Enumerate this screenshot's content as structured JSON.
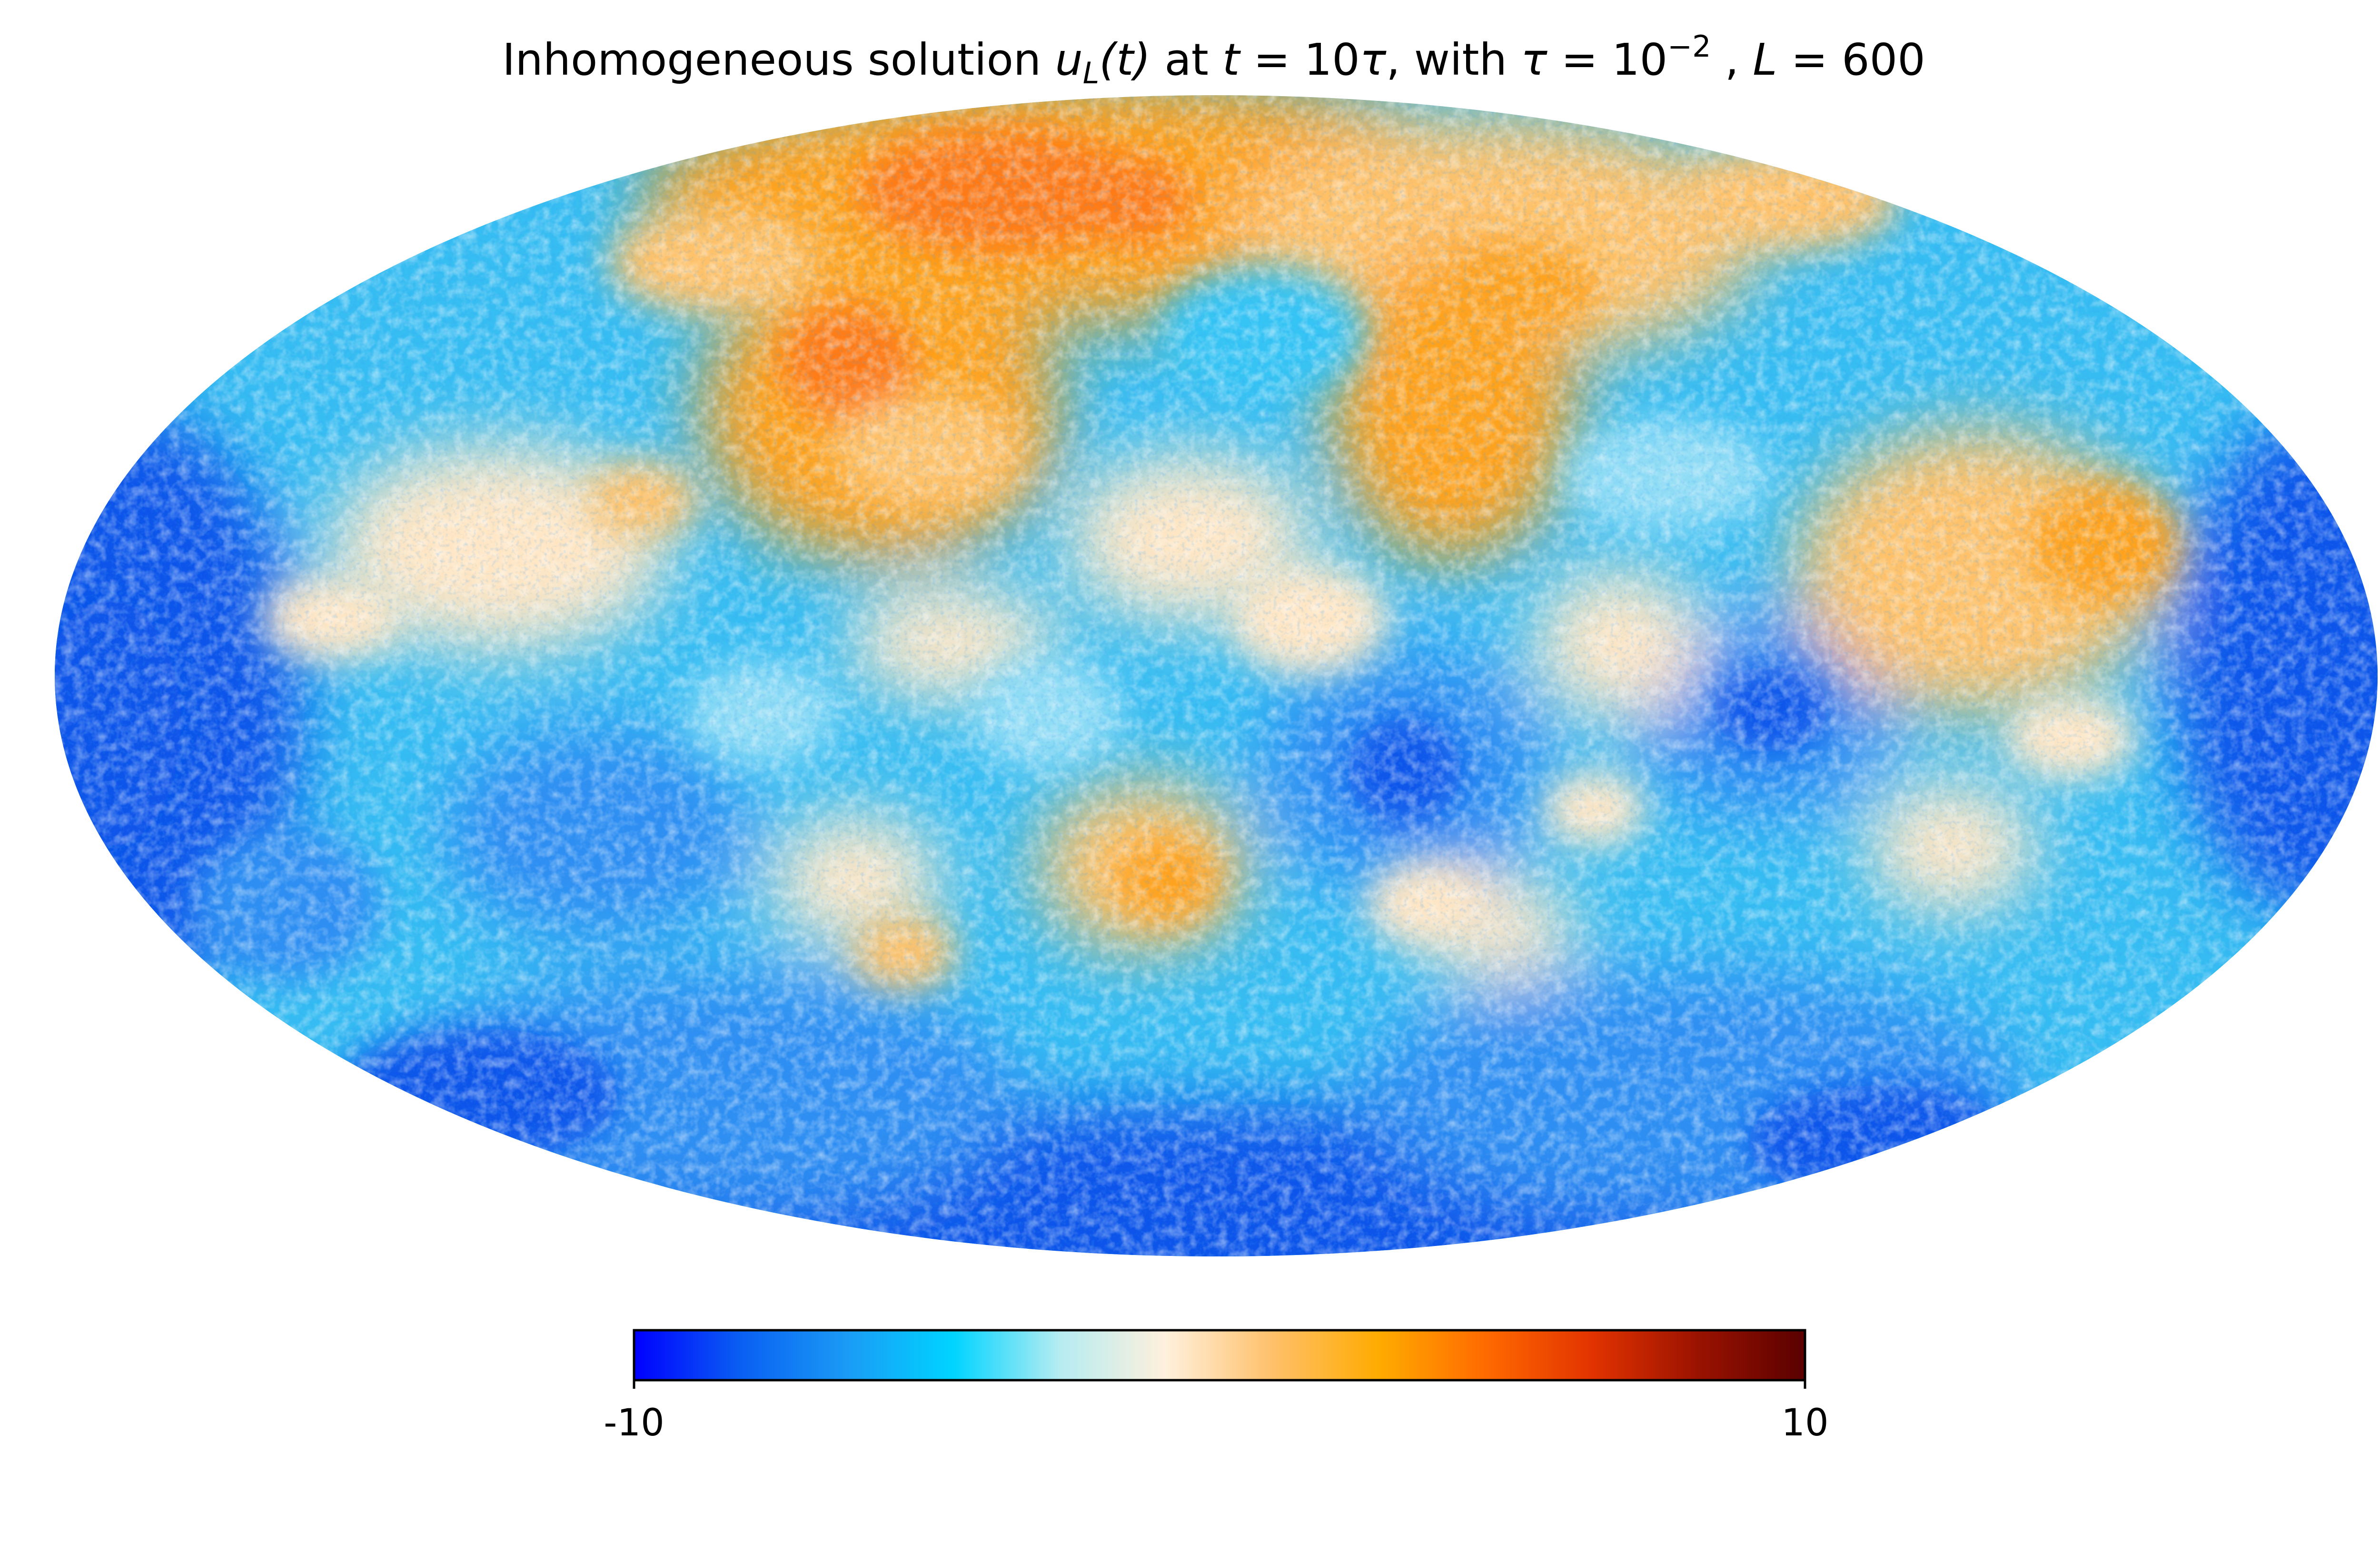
{
  "title": {
    "prefix": "Inhomogeneous solution ",
    "u": "u",
    "u_sub": "L",
    "u_arg": "(t)",
    "mid1": " at ",
    "t_eq": "t",
    "eq1": " = 10",
    "tau1": "τ",
    "mid2": ", with ",
    "tau2": "τ",
    "eq2": " = 10",
    "exp": "−2",
    "mid3": " , ",
    "L": "L",
    "eq3": " = 600"
  },
  "colorbar": {
    "min_label": "-10",
    "max_label": "10",
    "range": [
      -10,
      10
    ],
    "stops": [
      "#0000ff",
      "#0a5ff2",
      "#1a9bf5",
      "#00d4ff",
      "#b6ecf2",
      "#fff0dc",
      "#ffc06a",
      "#ffab00",
      "#ff6a00",
      "#e23300",
      "#9a1200",
      "#5a0000"
    ]
  },
  "map": {
    "projection": "mollweide",
    "colors": {
      "deep_blue": "#0a55ea",
      "blue": "#2e8ef2",
      "light_blue": "#36c4f4",
      "cyan": "#8fdcf5",
      "cream": "#ffe6c4",
      "light_orange": "#ffc26a",
      "orange": "#ffa21a",
      "dark_orange": "#ff7a12"
    }
  }
}
